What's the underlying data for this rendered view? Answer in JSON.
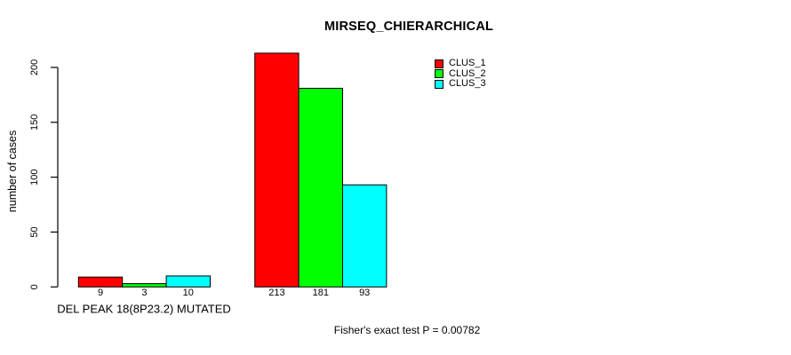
{
  "chart_data": {
    "type": "bar",
    "title": "MIRSEQ_CHIERARCHICAL",
    "ylabel": "number of cases",
    "xlabel": "",
    "categories": [
      "DEL PEAK 18(8P23.2) MUTATED",
      ""
    ],
    "series": [
      {
        "name": "CLUS_1",
        "color": "#ff0000",
        "values": [
          9,
          213
        ]
      },
      {
        "name": "CLUS_2",
        "color": "#00ff00",
        "values": [
          3,
          181
        ]
      },
      {
        "name": "CLUS_3",
        "color": "#00ffff",
        "values": [
          10,
          93
        ]
      }
    ],
    "bar_value_labels": [
      [
        9,
        3,
        10
      ],
      [
        213,
        181,
        93
      ]
    ],
    "yticks": [
      0,
      50,
      100,
      150,
      200
    ],
    "ylim": [
      0,
      215
    ],
    "grid": false,
    "legend_position": "top-right",
    "annotation": "Fisher's exact test P = 0.00782"
  }
}
